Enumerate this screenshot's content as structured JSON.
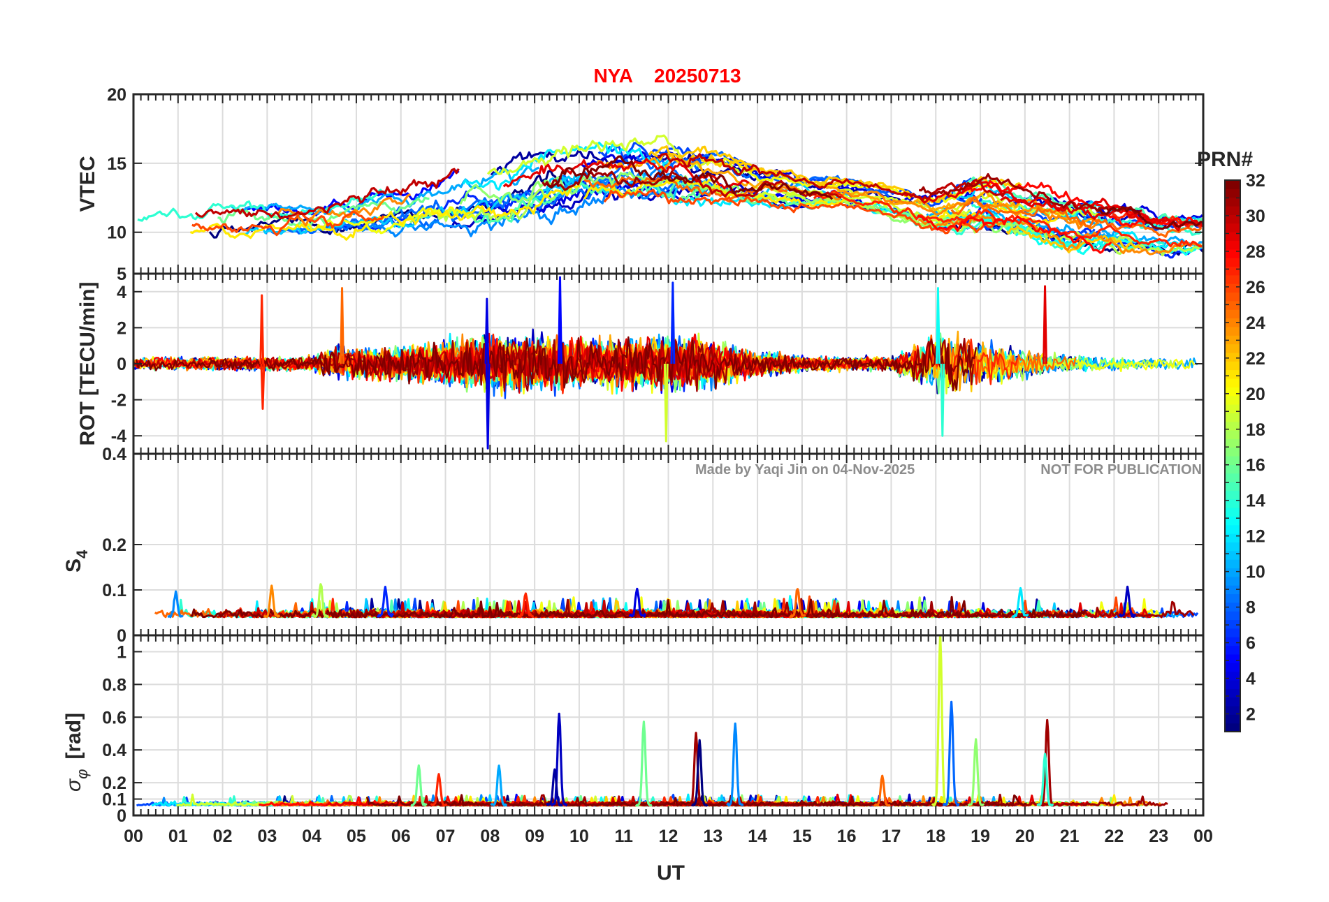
{
  "figure": {
    "station": "NYA",
    "date": "20250713",
    "title_color": "#ff0000",
    "watermark_author": "Made by Yaqi Jin on 04-Nov-2025",
    "watermark_notice": "NOT FOR PUBLICATION"
  },
  "colorbar": {
    "label": "PRN#",
    "range": [
      1,
      32
    ],
    "ticks": [
      "2",
      "4",
      "6",
      "8",
      "10",
      "12",
      "14",
      "16",
      "18",
      "20",
      "22",
      "24",
      "26",
      "28",
      "30",
      "32"
    ],
    "colormap": "jet"
  },
  "chart_data": [
    {
      "type": "line",
      "name": "vtec-panel",
      "ylabel": "VTEC",
      "ylim": [
        7,
        20
      ],
      "yticks": [
        10,
        15,
        20
      ],
      "ytick_labels": [
        "10",
        "15",
        "20"
      ],
      "series_description": "one line per PRN 1-32, colored by PRN",
      "envelope": {
        "x_hours": [
          0,
          2,
          4,
          6,
          8,
          10,
          11,
          12,
          13,
          14,
          16,
          17,
          18,
          19,
          20,
          21,
          22,
          23,
          24
        ],
        "mean": [
          10,
          10.5,
          10.5,
          11.5,
          12.5,
          14,
          14.2,
          14,
          13.8,
          13.2,
          12.8,
          12.2,
          11.5,
          12.2,
          11.5,
          10.8,
          10.5,
          10,
          10
        ],
        "spread": [
          1.2,
          1.4,
          1.4,
          1.6,
          2.0,
          2.0,
          1.8,
          1.8,
          1.6,
          1.2,
          0.9,
          0.9,
          1.2,
          1.6,
          1.4,
          1.6,
          1.4,
          1.2,
          1.2
        ]
      }
    },
    {
      "type": "line",
      "name": "rot-panel",
      "ylabel": "ROT [TECU/min]",
      "ylim": [
        -5,
        5
      ],
      "yticks": [
        -4,
        -2,
        0,
        2,
        4,
        5
      ],
      "ytick_labels": [
        "-4",
        "-2",
        "0",
        "2",
        "4",
        "5"
      ],
      "series_description": "rate of TEC per PRN, noisy around 0",
      "activity": {
        "x_hours": [
          0,
          2,
          4,
          4.5,
          6,
          7.5,
          8,
          9,
          10,
          11,
          12,
          13,
          14,
          15,
          16,
          17,
          17.8,
          18.2,
          19,
          20,
          21,
          22,
          24
        ],
        "amplitude": [
          0.5,
          0.5,
          0.5,
          1.2,
          1.2,
          2.0,
          2.2,
          2.0,
          1.8,
          1.8,
          2.2,
          1.8,
          1.0,
          0.6,
          0.5,
          0.5,
          1.8,
          2.4,
          1.8,
          1.0,
          0.7,
          0.5,
          0.5
        ]
      },
      "spikes": [
        {
          "hour": 2.88,
          "value": 3.8,
          "prn": 27
        },
        {
          "hour": 2.9,
          "value": -2.5,
          "prn": 27
        },
        {
          "hour": 4.68,
          "value": 4.2,
          "prn": 25
        },
        {
          "hour": 7.95,
          "value": -4.7,
          "prn": 4
        },
        {
          "hour": 7.93,
          "value": 3.6,
          "prn": 4
        },
        {
          "hour": 9.57,
          "value": 4.8,
          "prn": 5
        },
        {
          "hour": 12.1,
          "value": 4.5,
          "prn": 6
        },
        {
          "hour": 11.95,
          "value": -4.3,
          "prn": 19
        },
        {
          "hour": 18.15,
          "value": -4.0,
          "prn": 14
        },
        {
          "hour": 18.05,
          "value": 4.2,
          "prn": 13
        },
        {
          "hour": 20.45,
          "value": 4.3,
          "prn": 29
        }
      ]
    },
    {
      "type": "line",
      "name": "s4-panel",
      "ylabel": "S4",
      "ylabel_main": "S",
      "ylabel_sub": "4",
      "ylim": [
        0,
        0.4
      ],
      "yticks": [
        0,
        0.1,
        0.2,
        0.4
      ],
      "ytick_labels": [
        "0",
        "0.1",
        "0.2",
        "0.4"
      ],
      "series_description": "amplitude scintillation index per PRN",
      "baseline": 0.04,
      "noise": 0.01,
      "peaks": [
        {
          "hour": 0.95,
          "value": 0.09,
          "prn": 9
        },
        {
          "hour": 3.1,
          "value": 0.105,
          "prn": 24
        },
        {
          "hour": 4.2,
          "value": 0.11,
          "prn": 18
        },
        {
          "hour": 5.65,
          "value": 0.1,
          "prn": 6
        },
        {
          "hour": 8.8,
          "value": 0.09,
          "prn": 27
        },
        {
          "hour": 11.3,
          "value": 0.1,
          "prn": 4
        },
        {
          "hour": 14.9,
          "value": 0.1,
          "prn": 25
        },
        {
          "hour": 19.9,
          "value": 0.1,
          "prn": 12
        },
        {
          "hour": 22.3,
          "value": 0.1,
          "prn": 3
        }
      ]
    },
    {
      "type": "line",
      "name": "sigma-phi-panel",
      "ylabel": "σφ [rad]",
      "ylabel_main": "σ",
      "ylabel_sub": "φ",
      "ylabel_suffix": "[rad]",
      "ylim": [
        0,
        1.1
      ],
      "yticks": [
        0,
        0.1,
        0.2,
        0.4,
        0.6,
        0.8,
        1
      ],
      "ytick_labels": [
        "0",
        "0.1",
        "0.2",
        "0.4",
        "0.6",
        "0.8",
        "1"
      ],
      "xlabel": "UT",
      "xlim": [
        0,
        24
      ],
      "xtick_labels": [
        "00",
        "01",
        "02",
        "03",
        "04",
        "05",
        "06",
        "07",
        "08",
        "09",
        "10",
        "11",
        "12",
        "13",
        "14",
        "15",
        "16",
        "17",
        "18",
        "19",
        "20",
        "21",
        "22",
        "23",
        "00"
      ],
      "series_description": "phase scintillation index per PRN",
      "baseline": 0.06,
      "noise": 0.015,
      "peaks": [
        {
          "hour": 9.55,
          "value": 0.62,
          "prn": 3
        },
        {
          "hour": 9.45,
          "value": 0.28,
          "prn": 2
        },
        {
          "hour": 11.45,
          "value": 0.57,
          "prn": 16
        },
        {
          "hour": 12.62,
          "value": 0.5,
          "prn": 31
        },
        {
          "hour": 12.7,
          "value": 0.45,
          "prn": 1
        },
        {
          "hour": 13.5,
          "value": 0.56,
          "prn": 9
        },
        {
          "hour": 16.8,
          "value": 0.24,
          "prn": 25
        },
        {
          "hour": 18.1,
          "value": 1.1,
          "prn": 19
        },
        {
          "hour": 18.35,
          "value": 0.69,
          "prn": 8
        },
        {
          "hour": 18.9,
          "value": 0.46,
          "prn": 17
        },
        {
          "hour": 20.5,
          "value": 0.58,
          "prn": 31
        },
        {
          "hour": 20.45,
          "value": 0.37,
          "prn": 14
        },
        {
          "hour": 6.4,
          "value": 0.3,
          "prn": 16
        },
        {
          "hour": 6.85,
          "value": 0.25,
          "prn": 27
        },
        {
          "hour": 8.2,
          "value": 0.3,
          "prn": 10
        }
      ]
    }
  ]
}
